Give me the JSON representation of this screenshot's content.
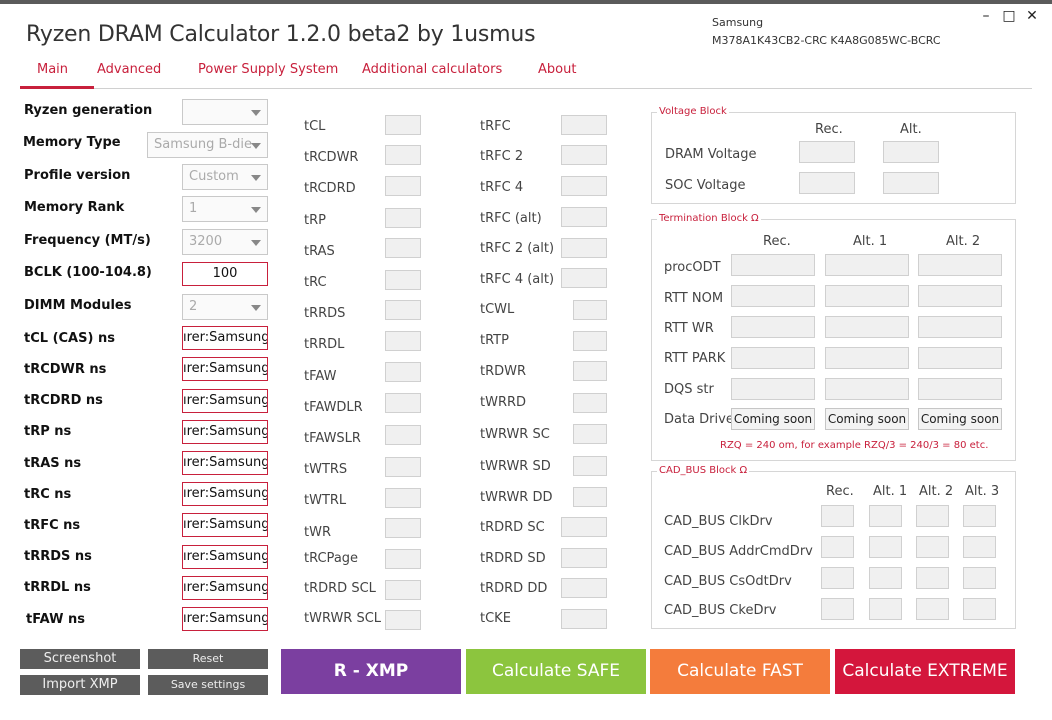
{
  "app": {
    "title": "Ryzen DRAM Calculator 1.2.0 beta2 by 1usmus",
    "memory_maker": "Samsung",
    "memory_part": "M378A1K43CB2-CRC K4A8G085WC-BCRC",
    "window_controls": {
      "minimize": "–",
      "maximize": "□",
      "close": "✕"
    }
  },
  "tabs": [
    {
      "label": "Main",
      "active": true
    },
    {
      "label": "Advanced"
    },
    {
      "label": "Power Supply System"
    },
    {
      "label": "Additional calculators"
    },
    {
      "label": "About"
    }
  ],
  "settings": {
    "ryzen_generation": {
      "label": "Ryzen generation",
      "value": ""
    },
    "memory_type": {
      "label": "Memory Type",
      "value": "Samsung B-die"
    },
    "profile_version": {
      "label": "Profile version",
      "value": "Custom"
    },
    "memory_rank": {
      "label": "Memory Rank",
      "value": "1"
    },
    "frequency": {
      "label": "Frequency (MT/s)",
      "value": "3200"
    },
    "bclk": {
      "label": "BCLK (100-104.8)",
      "value": "100"
    },
    "dimm_modules": {
      "label": "DIMM Modules",
      "value": "2"
    }
  },
  "ns_fields": [
    {
      "label": "tCL (CAS) ns",
      "value": "ırer:Samsung"
    },
    {
      "label": "tRCDWR ns",
      "value": "ırer:Samsung"
    },
    {
      "label": "tRCDRD ns",
      "value": "ırer:Samsung"
    },
    {
      "label": "tRP ns",
      "value": "ırer:Samsung"
    },
    {
      "label": "tRAS ns",
      "value": "ırer:Samsung"
    },
    {
      "label": "tRC ns",
      "value": "ırer:Samsung"
    },
    {
      "label": "tRFC ns",
      "value": "ırer:Samsung"
    },
    {
      "label": "tRRDS ns",
      "value": "ırer:Samsung"
    },
    {
      "label": "tRRDL ns",
      "value": "ırer:Samsung"
    },
    {
      "label": "tFAW ns",
      "value": "ırer:Samsung"
    }
  ],
  "timings_col1": [
    "tCL",
    "tRCDWR",
    "tRCDRD",
    "tRP",
    "tRAS",
    "tRC",
    "tRRDS",
    "tRRDL",
    "tFAW",
    "tFAWDLR",
    "tFAWSLR",
    "tWTRS",
    "tWTRL",
    "tWR",
    "tRCPage",
    "tRDRD SCL",
    "tWRWR SCL"
  ],
  "timings_col2": [
    "tRFC",
    "tRFC 2",
    "tRFC 4",
    "tRFC (alt)",
    "tRFC 2 (alt)",
    "tRFC 4 (alt)",
    "tCWL",
    "tRTP",
    "tRDWR",
    "tWRRD",
    "tWRWR SC",
    "tWRWR SD",
    "tWRWR DD",
    "tRDRD SC",
    "tRDRD SD",
    "tRDRD DD",
    "tCKE"
  ],
  "voltage_block": {
    "title": "Voltage Block",
    "headers": [
      "Rec.",
      "Alt."
    ],
    "rows": [
      "DRAM Voltage",
      "SOC Voltage"
    ]
  },
  "termination_block": {
    "title": "Termination Block Ω",
    "headers": [
      "Rec.",
      "Alt. 1",
      "Alt. 2"
    ],
    "rows": [
      "procODT",
      "RTT NOM",
      "RTT WR",
      "RTT PARK",
      "DQS str",
      "Data Drive"
    ],
    "coming_soon": "Coming soon",
    "note": "RZQ = 240 om, for example RZQ/3 = 240/3 = 80 etc."
  },
  "cad_bus_block": {
    "title": "CAD_BUS Block Ω",
    "headers": [
      "Rec.",
      "Alt. 1",
      "Alt. 2",
      "Alt. 3"
    ],
    "rows": [
      "CAD_BUS ClkDrv",
      "CAD_BUS AddrCmdDrv",
      "CAD_BUS CsOdtDrv",
      "CAD_BUS CkeDrv"
    ]
  },
  "buttons": {
    "screenshot": "Screenshot",
    "reset": "Reset",
    "import_xmp": "Import XMP",
    "save_settings": "Save settings",
    "r_xmp": "R - XMP",
    "calc_safe": "Calculate SAFE",
    "calc_fast": "Calculate FAST",
    "calc_extreme": "Calculate EXTREME"
  },
  "colors": {
    "accent": "#c8203c",
    "r_xmp": "#7b3fa0",
    "safe": "#8cc53e",
    "fast": "#f47c3c",
    "extreme": "#d4163c",
    "gray_button": "#5c5c5c"
  }
}
